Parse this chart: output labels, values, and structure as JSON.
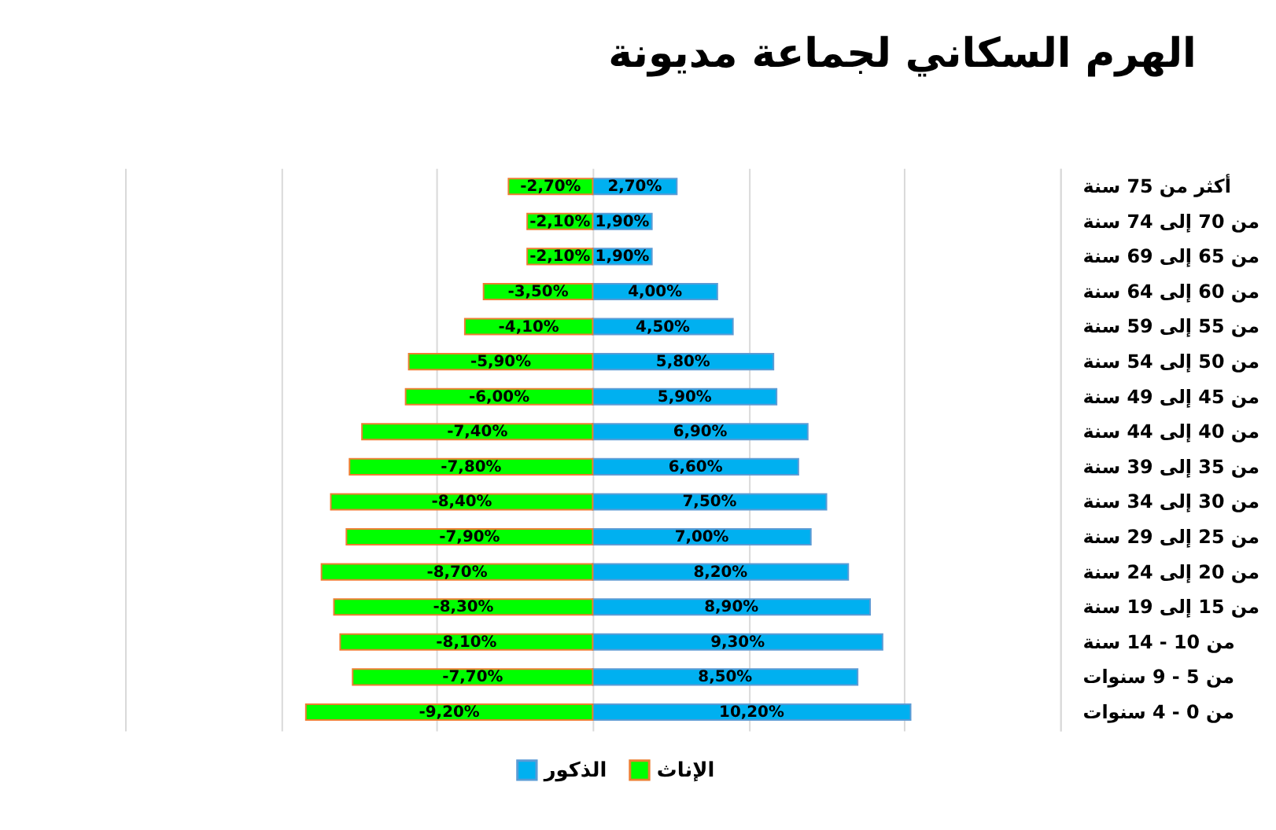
{
  "chart_data": {
    "type": "bar",
    "orientation": "horizontal",
    "stacked": true,
    "title": "الهرم السكاني لجماعة مديونة",
    "categories": [
      "أكثر من 75 سنة",
      "من 70 إلى 74 سنة",
      "من 65 إلى 69 سنة",
      "من 60 إلى 64 سنة",
      "من 55 إلى 59 سنة",
      "من 50 إلى 54 سنة",
      "من 45 إلى 49 سنة",
      "من 40 إلى 44 سنة",
      "من 35 إلى 39 سنة",
      "من 30 إلى 34 سنة",
      "من 25 إلى 29 سنة",
      "من 20 إلى 24 سنة",
      "من 15 إلى 19 سنة",
      "من 10 - 14 سنة",
      "من 5 -  9 سنوات",
      "من 0 - 4 سنوات"
    ],
    "series": [
      {
        "name": "الذكور",
        "color": "#00b0f0",
        "values": [
          2.7,
          1.9,
          1.9,
          4.0,
          4.5,
          5.8,
          5.9,
          6.9,
          6.6,
          7.5,
          7.0,
          8.2,
          8.9,
          9.3,
          8.5,
          10.2
        ],
        "value_labels": [
          "2,70%",
          "1,90%",
          "1,90%",
          "4,00%",
          "4,50%",
          "5,80%",
          "5,90%",
          "6,90%",
          "6,60%",
          "7,50%",
          "7,00%",
          "8,20%",
          "8,90%",
          "9,30%",
          "8,50%",
          "10,20%"
        ]
      },
      {
        "name": "الإناث",
        "color": "#00ff00",
        "values": [
          -2.7,
          -2.1,
          -2.1,
          -3.5,
          -4.1,
          -5.9,
          -6.0,
          -7.4,
          -7.8,
          -8.4,
          -7.9,
          -8.7,
          -8.3,
          -8.1,
          -7.7,
          -9.2
        ],
        "value_labels": [
          "-2,70%",
          "-2,10%",
          "-2,10%",
          "-3,50%",
          "-4,10%",
          "-5,90%",
          "-6,00%",
          "-7,40%",
          "-7,80%",
          "-8,40%",
          "-7,90%",
          "-8,70%",
          "-8,30%",
          "-8,10%",
          "-7,70%",
          "-9,20%"
        ]
      }
    ],
    "xlim": [
      -15,
      15
    ],
    "xticks": [
      {
        "value": -15,
        "label": null
      },
      {
        "value": -10,
        "label": null
      },
      {
        "value": -5,
        "label": null
      },
      {
        "value": 0,
        "label": null
      },
      {
        "value": 5,
        "label": null
      },
      {
        "value": 10,
        "label": null
      },
      {
        "value": 15,
        "label": null
      }
    ],
    "tick_labels": "y",
    "grid": "x",
    "legend": "bottom"
  }
}
